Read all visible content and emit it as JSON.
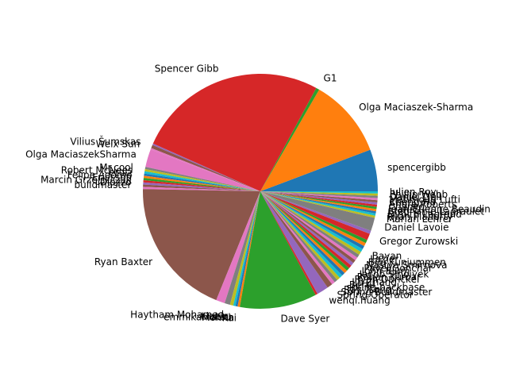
{
  "chart_data": {
    "type": "pie",
    "title": "",
    "start_angle_deg": 0,
    "direction": "counterclockwise",
    "slices": [
      {
        "label": "spencergibb",
        "value": 5.7,
        "color": "#1f77b4"
      },
      {
        "label": "Olga Maciaszek-Sharma",
        "value": 10.8,
        "color": "#ff7f0e"
      },
      {
        "label": "G1",
        "value": 0.45,
        "color": "#2ca02c"
      },
      {
        "label": "Spencer Gibb",
        "value": 26.0,
        "color": "#d62728"
      },
      {
        "label": "",
        "value": 0.2,
        "color": "#9467bd"
      },
      {
        "label": "Vilius Šumskas",
        "value": 0.45,
        "color": "#8c564b"
      },
      {
        "label": "Weix Sun",
        "value": 0.2,
        "color": "#e377c2"
      },
      {
        "label": "Olga MaciaszekSharma",
        "value": 2.45,
        "color": "#e377c2"
      },
      {
        "label": "",
        "value": 0.3,
        "color": "#7f7f7f"
      },
      {
        "label": "Mr.cool",
        "value": 0.3,
        "color": "#bcbd22"
      },
      {
        "label": "Robert McNees",
        "value": 0.3,
        "color": "#17becf"
      },
      {
        "label": "eruiz",
        "value": 0.3,
        "color": "#1f77b4"
      },
      {
        "label": "Felipe Adorno",
        "value": 0.3,
        "color": "#ff7f0e"
      },
      {
        "label": "Ericsson",
        "value": 0.3,
        "color": "#2ca02c"
      },
      {
        "label": "Marcin Grzejszczak",
        "value": 0.3,
        "color": "#d62728"
      },
      {
        "label": "Diozzo",
        "value": 0.3,
        "color": "#9467bd"
      },
      {
        "label": "buildmaster",
        "value": 0.3,
        "color": "#8c564b"
      },
      {
        "label": "",
        "value": 0.3,
        "color": "#e377c2"
      },
      {
        "label": "Ryan Baxter",
        "value": 19.0,
        "color": "#8c564b"
      },
      {
        "label": "",
        "value": 1.2,
        "color": "#e377c2"
      },
      {
        "label": "Haytham Mohamed",
        "value": 0.75,
        "color": "#7f7f7f"
      },
      {
        "label": "LiaLin",
        "value": 0.45,
        "color": "#bcbd22"
      },
      {
        "label": "emmikamatsu",
        "value": 0.3,
        "color": "#17becf"
      },
      {
        "label": "Mohith",
        "value": 0.3,
        "color": "#1f77b4"
      },
      {
        "label": "Kai",
        "value": 0.3,
        "color": "#ff7f0e"
      },
      {
        "label": "Dave Syer",
        "value": 10.5,
        "color": "#2ca02c"
      },
      {
        "label": "",
        "value": 0.3,
        "color": "#d62728"
      },
      {
        "label": "wenqi.huang",
        "value": 1.6,
        "color": "#9467bd"
      },
      {
        "label": "Spring Operator",
        "value": 0.75,
        "color": "#8c564b"
      },
      {
        "label": "Spring Buildmaster",
        "value": 0.45,
        "color": "#e377c2"
      },
      {
        "label": "Ray Tsang",
        "value": 0.45,
        "color": "#7f7f7f"
      },
      {
        "label": "spring-backbase",
        "value": 0.45,
        "color": "#bcbd22"
      },
      {
        "label": "Bertil",
        "value": 0.45,
        "color": "#17becf"
      },
      {
        "label": "Jin Zhang",
        "value": 0.45,
        "color": "#1f77b4"
      },
      {
        "label": "Ryan Dunckel",
        "value": 0.45,
        "color": "#ff7f0e"
      },
      {
        "label": "Rohan Kumar",
        "value": 0.45,
        "color": "#2ca02c"
      },
      {
        "label": "Jacob Smoiyek",
        "value": 0.45,
        "color": "#d62728"
      },
      {
        "label": "John Blum",
        "value": 0.45,
        "color": "#9467bd"
      },
      {
        "label": "Pavel Gonchar",
        "value": 0.45,
        "color": "#8c564b"
      },
      {
        "label": "Nastya Smirnova",
        "value": 0.45,
        "color": "#e377c2"
      },
      {
        "label": "Biju Kunjummen",
        "value": 0.45,
        "color": "#7f7f7f"
      },
      {
        "label": "Lazier",
        "value": 0.45,
        "color": "#bcbd22"
      },
      {
        "label": "Bayan",
        "value": 0.45,
        "color": "#17becf"
      },
      {
        "label": "",
        "value": 0.45,
        "color": "#1f77b4"
      },
      {
        "label": "",
        "value": 0.45,
        "color": "#ff7f0e"
      },
      {
        "label": "",
        "value": 0.45,
        "color": "#2ca02c"
      },
      {
        "label": "Gregor Zurowski",
        "value": 0.9,
        "color": "#d62728"
      },
      {
        "label": "",
        "value": 0.45,
        "color": "#9467bd"
      },
      {
        "label": "Daniel Lavoie",
        "value": 1.8,
        "color": "#7f7f7f"
      },
      {
        "label": "Marian Lehrer",
        "value": 0.3,
        "color": "#bcbd22"
      },
      {
        "label": "Ryan Flaherty",
        "value": 0.3,
        "color": "#17becf"
      },
      {
        "label": "Dimitri Lagrand",
        "value": 0.3,
        "color": "#1f77b4"
      },
      {
        "label": "Stephanie Lagraulet",
        "value": 0.3,
        "color": "#ff7f0e"
      },
      {
        "label": "Jean-Etienne Beaudin",
        "value": 0.3,
        "color": "#2ca02c"
      },
      {
        "label": "Chanyo",
        "value": 0.3,
        "color": "#d62728"
      },
      {
        "label": "Andre Roberts",
        "value": 0.3,
        "color": "#9467bd"
      },
      {
        "label": "Cheng Hu",
        "value": 0.3,
        "color": "#8c564b"
      },
      {
        "label": "Mahmoud Lufti",
        "value": 0.3,
        "color": "#e377c2"
      },
      {
        "label": "Daniel Dell",
        "value": 0.3,
        "color": "#7f7f7f"
      },
      {
        "label": "Phillip Webb",
        "value": 0.3,
        "color": "#bcbd22"
      },
      {
        "label": "Julien Roy",
        "value": 0.3,
        "color": "#17becf"
      }
    ]
  }
}
